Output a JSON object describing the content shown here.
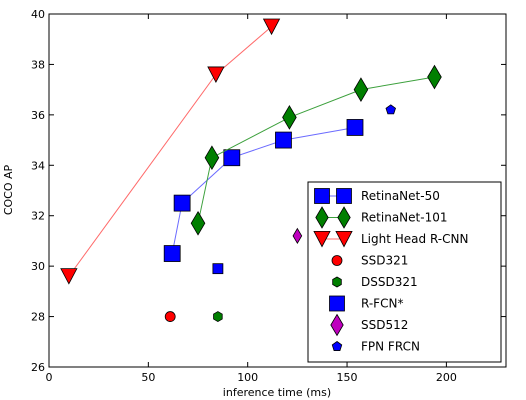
{
  "chart_data": {
    "type": "scatter",
    "xlabel": "inference time (ms)",
    "ylabel": "COCO AP",
    "xlim": [
      0,
      230
    ],
    "ylim": [
      26,
      40
    ],
    "xticks": [
      0,
      50,
      100,
      150,
      200
    ],
    "yticks": [
      26,
      28,
      30,
      32,
      34,
      36,
      38,
      40
    ],
    "grid": false,
    "legend_position": "lower-right",
    "series": [
      {
        "name": "RetinaNet-50",
        "marker": "square",
        "line": true,
        "color": "#0000ff",
        "line_color": "#6b6bff",
        "points": [
          [
            62,
            30.5
          ],
          [
            67,
            32.5
          ],
          [
            92,
            34.3
          ],
          [
            118,
            35.0
          ],
          [
            154,
            35.5
          ]
        ]
      },
      {
        "name": "RetinaNet-101",
        "marker": "thin-diamond",
        "line": true,
        "color": "#007f00",
        "line_color": "#3ca03c",
        "points": [
          [
            75,
            31.7
          ],
          [
            82,
            34.3
          ],
          [
            121,
            35.9
          ],
          [
            157,
            37.0
          ],
          [
            194,
            37.5
          ]
        ]
      },
      {
        "name": "Light Head R-CNN",
        "marker": "triangle-down",
        "line": true,
        "color": "#ff0000",
        "line_color": "#ff6b6b",
        "points": [
          [
            10,
            29.6
          ],
          [
            84,
            37.6
          ],
          [
            112,
            39.5
          ]
        ]
      },
      {
        "name": "SSD321",
        "marker": "circle",
        "line": false,
        "color": "#ff0000",
        "points": [
          [
            61,
            28.0
          ]
        ]
      },
      {
        "name": "DSSD321",
        "marker": "hexagon",
        "line": false,
        "color": "#007f00",
        "points": [
          [
            85,
            28.0
          ]
        ]
      },
      {
        "name": "R-FCN*",
        "marker": "square",
        "line": false,
        "color": "#0000ff",
        "points": [
          [
            85,
            29.9
          ]
        ]
      },
      {
        "name": "SSD512",
        "marker": "thin-diamond",
        "line": false,
        "color": "#bf00bf",
        "points": [
          [
            125,
            31.2
          ]
        ]
      },
      {
        "name": "FPN FRCN",
        "marker": "pentagon",
        "line": false,
        "color": "#0000ff",
        "points": [
          [
            172,
            36.2
          ]
        ]
      }
    ]
  }
}
